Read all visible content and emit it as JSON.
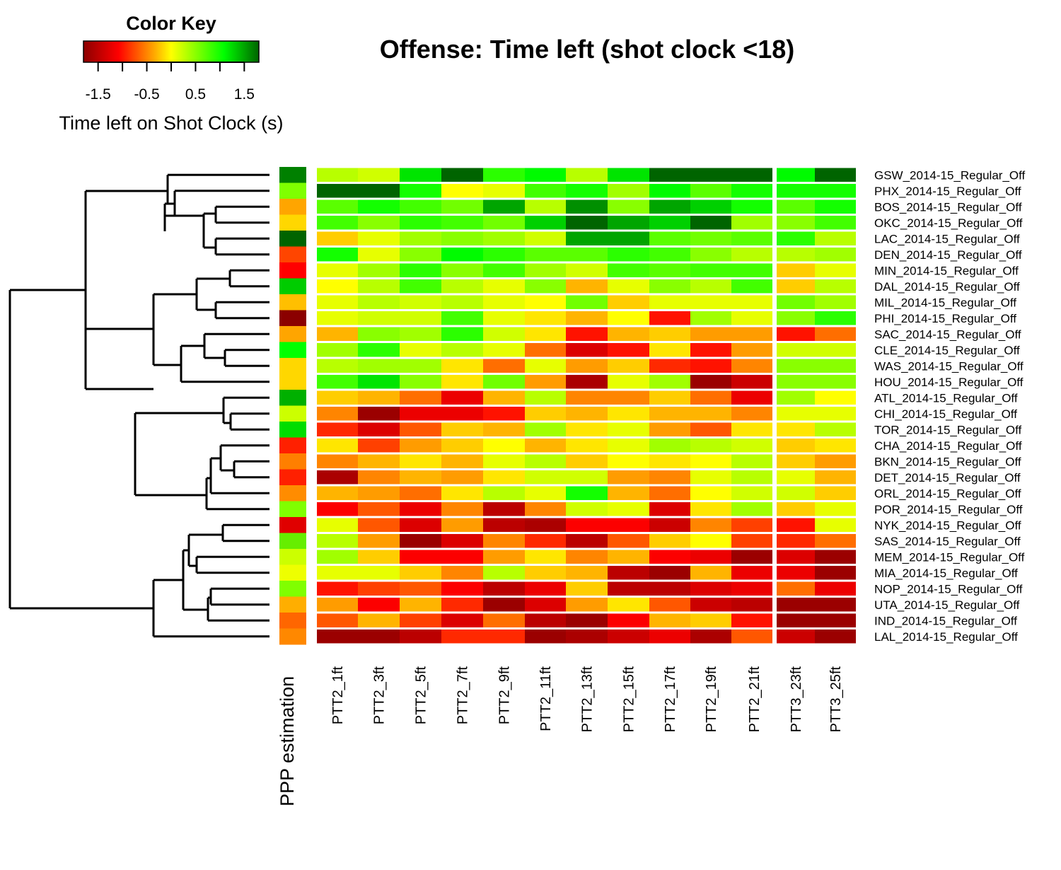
{
  "chart_data": {
    "type": "heatmap",
    "title": "Offense: Time left (shot clock <18)",
    "color_key": {
      "title": "Color Key",
      "label": "Time left on Shot Clock (s)",
      "range": [
        -1.8,
        1.8
      ],
      "ticks": [
        -1.5,
        -1,
        -0.5,
        0,
        0.5,
        1,
        1.5
      ],
      "tick_labels": [
        "-1.5",
        "-0.5",
        "0.5",
        "1.5"
      ],
      "tick_label_values": [
        -1.5,
        -0.5,
        0.5,
        1.5
      ],
      "colors": [
        "#8b0000",
        "#ff0000",
        "#ffa500",
        "#ffff00",
        "#00ff00",
        "#006400"
      ]
    },
    "side_color_label": "PPP estimation",
    "rows": [
      "GSW_2014-15_Regular_Off",
      "PHX_2014-15_Regular_Off",
      "BOS_2014-15_Regular_Off",
      "OKC_2014-15_Regular_Off",
      "LAC_2014-15_Regular_Off",
      "DEN_2014-15_Regular_Off",
      "MIN_2014-15_Regular_Off",
      "DAL_2014-15_Regular_Off",
      "MIL_2014-15_Regular_Off",
      "PHI_2014-15_Regular_Off",
      "SAC_2014-15_Regular_Off",
      "CLE_2014-15_Regular_Off",
      "WAS_2014-15_Regular_Off",
      "HOU_2014-15_Regular_Off",
      "ATL_2014-15_Regular_Off",
      "CHI_2014-15_Regular_Off",
      "TOR_2014-15_Regular_Off",
      "CHA_2014-15_Regular_Off",
      "BKN_2014-15_Regular_Off",
      "DET_2014-15_Regular_Off",
      "ORL_2014-15_Regular_Off",
      "POR_2014-15_Regular_Off",
      "NYK_2014-15_Regular_Off",
      "SAS_2014-15_Regular_Off",
      "MEM_2014-15_Regular_Off",
      "MIA_2014-15_Regular_Off",
      "NOP_2014-15_Regular_Off",
      "UTA_2014-15_Regular_Off",
      "IND_2014-15_Regular_Off",
      "LAL_2014-15_Regular_Off"
    ],
    "columns": [
      "PTT2_1ft",
      "PTT2_3ft",
      "PTT2_5ft",
      "PTT2_7ft",
      "PTT2_9ft",
      "PTT2_11ft",
      "PTT2_13ft",
      "PTT2_15ft",
      "PTT2_17ft",
      "PTT2_19ft",
      "PTT2_21ft",
      "PTT3_23ft",
      "PTT3_25ft"
    ],
    "column_gap_after_index": 10,
    "values": [
      [
        0.3,
        0.2,
        1.2,
        1.8,
        0.9,
        1.1,
        0.3,
        1.2,
        1.8,
        1.8,
        1.8,
        1.1,
        1.8
      ],
      [
        1.8,
        1.8,
        1.0,
        0.0,
        0.1,
        0.8,
        1.0,
        0.4,
        1.1,
        0.7,
        1.0,
        1.0,
        1.0
      ],
      [
        0.7,
        1.0,
        0.8,
        0.6,
        1.5,
        0.3,
        1.6,
        0.5,
        1.5,
        1.3,
        1.0,
        0.7,
        1.0
      ],
      [
        0.8,
        0.5,
        0.9,
        0.8,
        0.6,
        1.3,
        1.8,
        1.5,
        1.3,
        1.8,
        0.4,
        0.5,
        0.8
      ],
      [
        -0.2,
        0.1,
        0.4,
        0.5,
        0.4,
        0.2,
        1.5,
        1.5,
        0.7,
        0.6,
        0.7,
        0.9,
        0.3
      ],
      [
        1.0,
        0.1,
        0.5,
        1.1,
        0.9,
        0.7,
        0.7,
        0.9,
        0.8,
        0.5,
        0.3,
        0.3,
        0.4
      ],
      [
        0.1,
        0.4,
        0.9,
        0.5,
        0.8,
        0.4,
        0.2,
        0.8,
        0.7,
        0.8,
        0.8,
        -0.2,
        0.1
      ],
      [
        0.0,
        0.3,
        0.8,
        0.3,
        0.1,
        0.5,
        -0.3,
        0.1,
        0.5,
        0.3,
        0.8,
        -0.2,
        0.3
      ],
      [
        0.1,
        0.3,
        0.2,
        0.3,
        0.1,
        0.0,
        0.6,
        -0.2,
        0.1,
        0.1,
        0.1,
        0.6,
        0.4
      ],
      [
        0.1,
        0.2,
        0.2,
        0.8,
        0.1,
        -0.1,
        -0.3,
        0.0,
        -1.0,
        0.4,
        0.1,
        0.5,
        0.9
      ],
      [
        -0.3,
        0.5,
        0.4,
        0.9,
        0.2,
        -0.1,
        -1.0,
        -0.3,
        -0.2,
        -0.4,
        -0.4,
        -1.0,
        -0.6
      ],
      [
        0.4,
        0.9,
        0.1,
        0.3,
        0.1,
        -0.6,
        -1.3,
        -1.0,
        -0.1,
        -1.0,
        -0.4,
        0.2,
        0.2
      ],
      [
        0.3,
        0.4,
        0.4,
        -0.1,
        -0.6,
        0.1,
        -0.4,
        -0.2,
        -0.9,
        -1.0,
        -0.5,
        0.5,
        0.5
      ],
      [
        0.8,
        1.2,
        0.5,
        -0.1,
        0.6,
        -0.4,
        -1.6,
        0.1,
        0.4,
        -1.7,
        -1.4,
        0.5,
        0.5
      ],
      [
        -0.2,
        -0.3,
        -0.6,
        -1.2,
        -0.3,
        0.3,
        -0.5,
        -0.5,
        -0.2,
        -0.6,
        -1.2,
        0.4,
        0.0
      ],
      [
        -0.5,
        -1.7,
        -1.2,
        -1.2,
        -1.0,
        -0.2,
        -0.3,
        -0.1,
        -0.3,
        -0.3,
        -0.5,
        0.1,
        0.1
      ],
      [
        -0.9,
        -1.3,
        -0.7,
        -0.2,
        -0.3,
        0.4,
        -0.1,
        0.1,
        -0.4,
        -0.7,
        -0.1,
        -0.1,
        0.3
      ],
      [
        -0.1,
        -0.8,
        -0.4,
        -0.2,
        0.0,
        -0.3,
        -0.1,
        0.1,
        0.4,
        0.3,
        0.2,
        -0.2,
        -0.1
      ],
      [
        -0.5,
        -0.3,
        -0.1,
        -0.3,
        0.1,
        0.3,
        -0.2,
        0.0,
        -0.1,
        0.0,
        0.3,
        -0.2,
        -0.4
      ],
      [
        -1.6,
        -0.5,
        -0.3,
        -0.4,
        -0.1,
        0.2,
        0.2,
        -0.4,
        -0.5,
        0.1,
        0.3,
        0.1,
        -0.3
      ],
      [
        -0.3,
        -0.4,
        -0.6,
        -0.1,
        0.3,
        0.1,
        1.0,
        -0.3,
        -0.6,
        0.0,
        0.2,
        0.2,
        -0.2
      ],
      [
        -1.1,
        -0.7,
        -1.2,
        -0.5,
        -1.5,
        -0.5,
        0.2,
        0.1,
        -1.3,
        -0.1,
        0.4,
        -0.2,
        0.1
      ],
      [
        0.1,
        -0.7,
        -1.3,
        -0.4,
        -1.5,
        -1.6,
        -1.1,
        -1.1,
        -1.4,
        -0.5,
        -0.8,
        -1.0,
        0.1
      ],
      [
        0.3,
        -0.4,
        -1.7,
        -1.3,
        -0.5,
        -0.9,
        -1.5,
        -0.7,
        -0.2,
        0.0,
        -0.8,
        -0.9,
        -0.6
      ],
      [
        0.4,
        -0.2,
        -1.1,
        -1.1,
        -0.4,
        -0.1,
        -0.5,
        -0.3,
        -1.1,
        -1.2,
        -1.7,
        -1.3,
        -1.7
      ],
      [
        0.1,
        0.1,
        -0.2,
        -0.5,
        0.3,
        -0.2,
        -0.3,
        -1.5,
        -1.7,
        -0.3,
        -1.2,
        -1.2,
        -1.7
      ],
      [
        -1.0,
        -0.8,
        -0.7,
        -1.1,
        -1.5,
        -1.2,
        -0.2,
        -1.5,
        -1.5,
        -1.3,
        -1.2,
        -0.6,
        -1.2
      ],
      [
        -0.4,
        -1.1,
        -0.3,
        -0.9,
        -1.7,
        -1.3,
        -0.4,
        -0.1,
        -0.7,
        -1.4,
        -1.5,
        -1.7,
        -1.7
      ],
      [
        -0.7,
        -0.3,
        -0.8,
        -1.3,
        -0.6,
        -1.5,
        -1.7,
        -1.1,
        -0.3,
        -0.2,
        -1.0,
        -1.7,
        -1.7
      ],
      [
        -1.7,
        -1.7,
        -1.5,
        -0.9,
        -0.9,
        -1.7,
        -1.6,
        -1.4,
        -1.2,
        -1.6,
        -0.7,
        -1.4,
        -1.7
      ]
    ],
    "side_colors": [
      "#008000",
      "#7fff00",
      "#ffa500",
      "#ffd700",
      "#006400",
      "#ff4500",
      "#ff0000",
      "#00cc00",
      "#ffbf00",
      "#8b0000",
      "#ffa500",
      "#00ff00",
      "#ffd700",
      "#ffd700",
      "#00b000",
      "#ccff00",
      "#00dd00",
      "#ff2000",
      "#ff7f00",
      "#ff2000",
      "#ff8c00",
      "#80ff00",
      "#e00000",
      "#66ee00",
      "#ccff00",
      "#eeff00",
      "#80ff00",
      "#ffae00",
      "#ff6600",
      "#ff8800"
    ],
    "row_dendrogram_merges": [
      [
        2,
        3
      ],
      [
        4,
        5
      ],
      [
        6,
        7
      ],
      [
        8,
        9
      ],
      [
        10,
        11
      ],
      [
        12,
        13
      ],
      [
        14,
        15
      ],
      [
        16,
        17
      ],
      [
        18,
        19
      ],
      [
        20,
        21
      ],
      [
        22,
        23
      ],
      [
        24,
        25
      ],
      [
        26,
        27
      ],
      [
        28,
        29
      ],
      [
        0,
        1
      ]
    ]
  }
}
